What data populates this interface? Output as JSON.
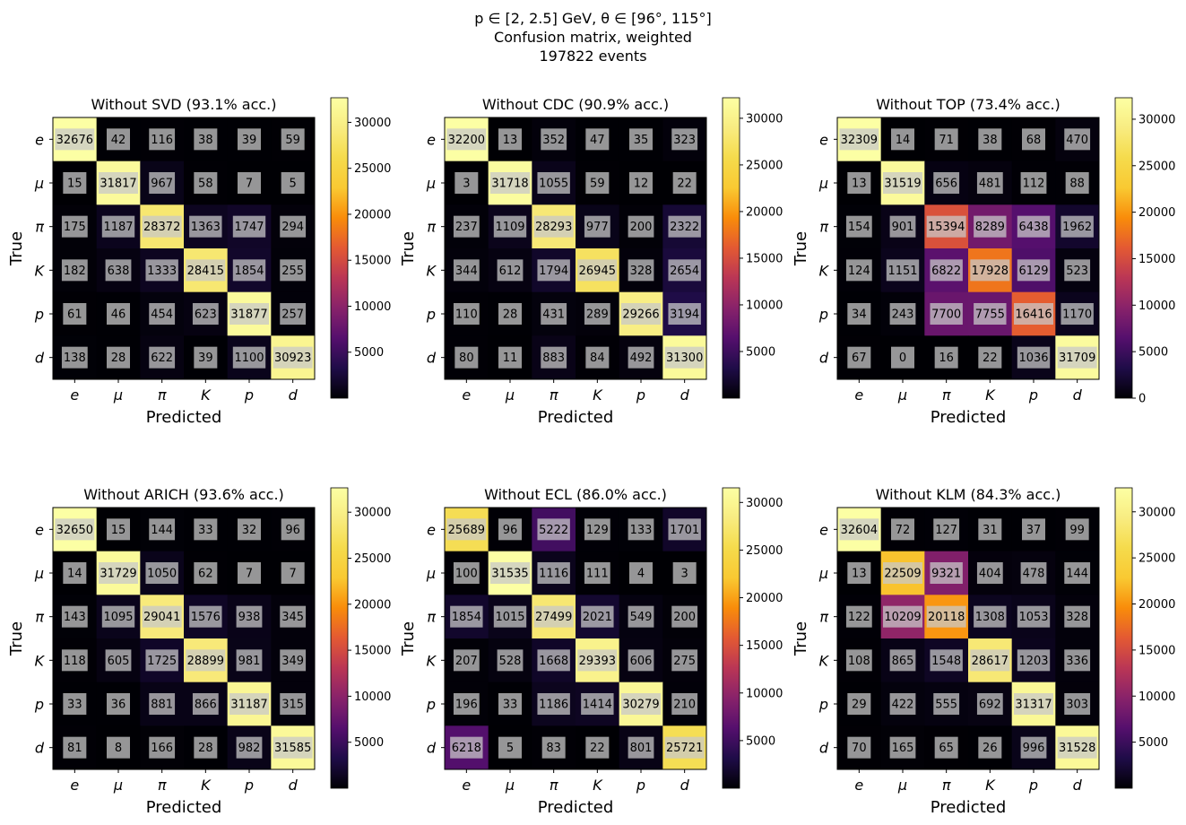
{
  "suptitle": {
    "line1": "p ∈ [2, 2.5] GeV, θ ∈ [96°, 115°]",
    "line2": "Confusion matrix, weighted",
    "line3": "197822 events"
  },
  "chart_data": [
    {
      "type": "heatmap",
      "title": "Without SVD (93.1% acc.)",
      "xlabel": "Predicted",
      "ylabel": "True",
      "categories_x": [
        "e",
        "μ",
        "π",
        "K",
        "p",
        "d"
      ],
      "categories_y": [
        "e",
        "μ",
        "π",
        "K",
        "p",
        "d"
      ],
      "values": [
        [
          32676,
          42,
          116,
          38,
          39,
          59
        ],
        [
          15,
          31817,
          967,
          58,
          7,
          5
        ],
        [
          175,
          1187,
          28372,
          1363,
          1747,
          294
        ],
        [
          182,
          638,
          1333,
          28415,
          1854,
          255
        ],
        [
          61,
          46,
          454,
          623,
          31877,
          257
        ],
        [
          138,
          28,
          622,
          39,
          1100,
          30923
        ]
      ],
      "colorbar_ticks": [
        5000,
        10000,
        15000,
        20000,
        25000,
        30000
      ],
      "vmin": 0,
      "vmax": 32676,
      "colormap": "inferno"
    },
    {
      "type": "heatmap",
      "title": "Without CDC (90.9% acc.)",
      "xlabel": "Predicted",
      "ylabel": "True",
      "categories_x": [
        "e",
        "μ",
        "π",
        "K",
        "p",
        "d"
      ],
      "categories_y": [
        "e",
        "μ",
        "π",
        "K",
        "p",
        "d"
      ],
      "values": [
        [
          32200,
          13,
          352,
          47,
          35,
          323
        ],
        [
          3,
          31718,
          1055,
          59,
          12,
          22
        ],
        [
          237,
          1109,
          28293,
          977,
          200,
          2322
        ],
        [
          344,
          612,
          1794,
          26945,
          328,
          2654
        ],
        [
          110,
          28,
          431,
          289,
          29266,
          3194
        ],
        [
          80,
          11,
          883,
          84,
          492,
          31300
        ]
      ],
      "colorbar_ticks": [
        5000,
        10000,
        15000,
        20000,
        25000,
        30000
      ],
      "vmin": 0,
      "vmax": 32200,
      "colormap": "inferno"
    },
    {
      "type": "heatmap",
      "title": "Without TOP (73.4% acc.)",
      "xlabel": "Predicted",
      "ylabel": "True",
      "categories_x": [
        "e",
        "μ",
        "π",
        "K",
        "p",
        "d"
      ],
      "categories_y": [
        "e",
        "μ",
        "π",
        "K",
        "p",
        "d"
      ],
      "values": [
        [
          32309,
          14,
          71,
          38,
          68,
          470
        ],
        [
          13,
          31519,
          656,
          481,
          112,
          88
        ],
        [
          154,
          901,
          15394,
          8289,
          6438,
          1962
        ],
        [
          124,
          1151,
          6822,
          17928,
          6129,
          523
        ],
        [
          34,
          243,
          7700,
          7755,
          16416,
          1170
        ],
        [
          67,
          0,
          16,
          22,
          1036,
          31709
        ]
      ],
      "colorbar_ticks": [
        0,
        5000,
        10000,
        15000,
        20000,
        25000,
        30000
      ],
      "vmin": 0,
      "vmax": 32309,
      "colormap": "inferno"
    },
    {
      "type": "heatmap",
      "title": "Without ARICH (93.6% acc.)",
      "xlabel": "Predicted",
      "ylabel": "True",
      "categories_x": [
        "e",
        "μ",
        "π",
        "K",
        "p",
        "d"
      ],
      "categories_y": [
        "e",
        "μ",
        "π",
        "K",
        "p",
        "d"
      ],
      "values": [
        [
          32650,
          15,
          144,
          33,
          32,
          96
        ],
        [
          14,
          31729,
          1050,
          62,
          7,
          7
        ],
        [
          143,
          1095,
          29041,
          1576,
          938,
          345
        ],
        [
          118,
          605,
          1725,
          28899,
          981,
          349
        ],
        [
          33,
          36,
          881,
          866,
          31187,
          315
        ],
        [
          81,
          8,
          166,
          28,
          982,
          31585
        ]
      ],
      "colorbar_ticks": [
        5000,
        10000,
        15000,
        20000,
        25000,
        30000
      ],
      "vmin": 0,
      "vmax": 32650,
      "colormap": "inferno"
    },
    {
      "type": "heatmap",
      "title": "Without ECL (86.0% acc.)",
      "xlabel": "Predicted",
      "ylabel": "True",
      "categories_x": [
        "e",
        "μ",
        "π",
        "K",
        "p",
        "d"
      ],
      "categories_y": [
        "e",
        "μ",
        "π",
        "K",
        "p",
        "d"
      ],
      "values": [
        [
          25689,
          96,
          5222,
          129,
          133,
          1701
        ],
        [
          100,
          31535,
          1116,
          111,
          4,
          3
        ],
        [
          1854,
          1015,
          27499,
          2021,
          549,
          200
        ],
        [
          207,
          528,
          1668,
          29393,
          606,
          275
        ],
        [
          196,
          33,
          1186,
          1414,
          30279,
          210
        ],
        [
          6218,
          5,
          83,
          22,
          801,
          25721
        ]
      ],
      "colorbar_ticks": [
        5000,
        10000,
        15000,
        20000,
        25000,
        30000
      ],
      "vmin": 0,
      "vmax": 31535,
      "colormap": "inferno"
    },
    {
      "type": "heatmap",
      "title": "Without KLM (84.3% acc.)",
      "xlabel": "Predicted",
      "ylabel": "True",
      "categories_x": [
        "e",
        "μ",
        "π",
        "K",
        "p",
        "d"
      ],
      "categories_y": [
        "e",
        "μ",
        "π",
        "K",
        "p",
        "d"
      ],
      "values": [
        [
          32604,
          72,
          127,
          31,
          37,
          99
        ],
        [
          13,
          22509,
          9321,
          404,
          478,
          144
        ],
        [
          122,
          10209,
          20118,
          1308,
          1053,
          328
        ],
        [
          108,
          865,
          1548,
          28617,
          1203,
          336
        ],
        [
          29,
          422,
          555,
          692,
          31317,
          303
        ],
        [
          70,
          165,
          65,
          26,
          996,
          31528
        ]
      ],
      "colorbar_ticks": [
        5000,
        10000,
        15000,
        20000,
        25000,
        30000
      ],
      "vmin": 0,
      "vmax": 32604,
      "colormap": "inferno"
    }
  ]
}
